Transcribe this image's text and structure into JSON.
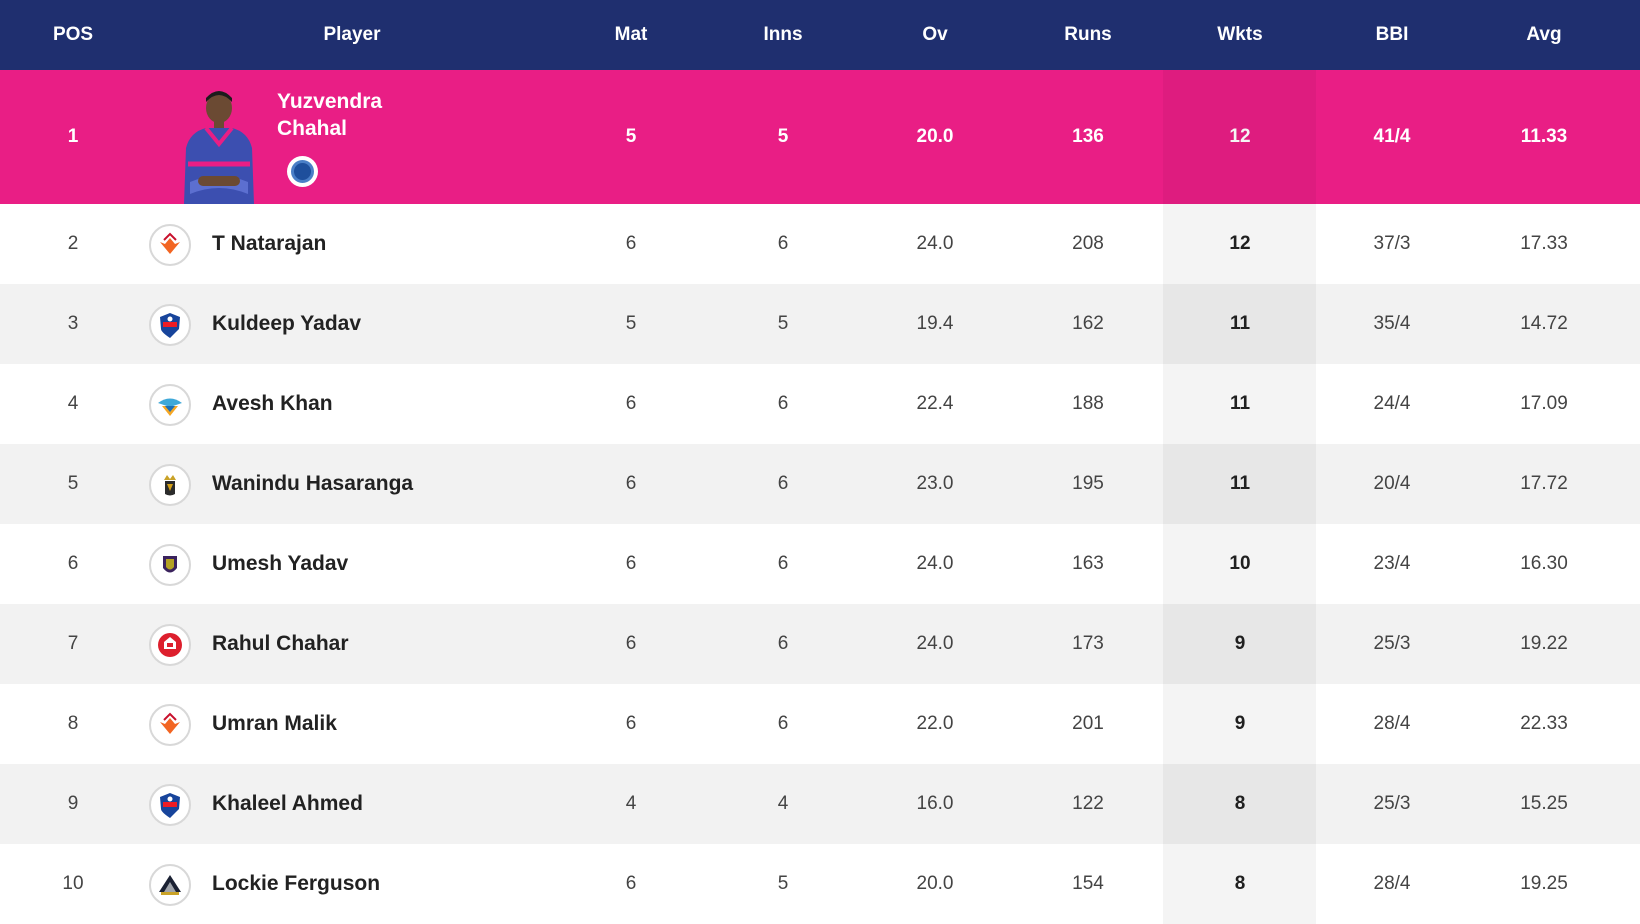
{
  "header": {
    "pos": "POS",
    "player": "Player",
    "mat": "Mat",
    "inns": "Inns",
    "ov": "Ov",
    "runs": "Runs",
    "wkts": "Wkts",
    "bbi": "BBI",
    "avg": "Avg"
  },
  "featured": {
    "pos": "1",
    "name": "Yuzvendra Chahal",
    "mat": "5",
    "inns": "5",
    "ov": "20.0",
    "runs": "136",
    "wkts": "12",
    "bbi": "41/4",
    "avg": "11.33",
    "team_icon": "rajasthan-royals-badge"
  },
  "rows": [
    {
      "pos": "2",
      "name": "T Natarajan",
      "mat": "6",
      "inns": "6",
      "ov": "24.0",
      "runs": "208",
      "wkts": "12",
      "bbi": "37/3",
      "avg": "17.33",
      "team_icon": "sunrisers-hyderabad-logo"
    },
    {
      "pos": "3",
      "name": "Kuldeep Yadav",
      "mat": "5",
      "inns": "5",
      "ov": "19.4",
      "runs": "162",
      "wkts": "11",
      "bbi": "35/4",
      "avg": "14.72",
      "team_icon": "delhi-capitals-logo"
    },
    {
      "pos": "4",
      "name": "Avesh Khan",
      "mat": "6",
      "inns": "6",
      "ov": "22.4",
      "runs": "188",
      "wkts": "11",
      "bbi": "24/4",
      "avg": "17.09",
      "team_icon": "lucknow-super-giants-logo"
    },
    {
      "pos": "5",
      "name": "Wanindu Hasaranga",
      "mat": "6",
      "inns": "6",
      "ov": "23.0",
      "runs": "195",
      "wkts": "11",
      "bbi": "20/4",
      "avg": "17.72",
      "team_icon": "royal-challengers-bangalore-logo"
    },
    {
      "pos": "6",
      "name": "Umesh Yadav",
      "mat": "6",
      "inns": "6",
      "ov": "24.0",
      "runs": "163",
      "wkts": "10",
      "bbi": "23/4",
      "avg": "16.30",
      "team_icon": "kolkata-knight-riders-logo"
    },
    {
      "pos": "7",
      "name": "Rahul Chahar",
      "mat": "6",
      "inns": "6",
      "ov": "24.0",
      "runs": "173",
      "wkts": "9",
      "bbi": "25/3",
      "avg": "19.22",
      "team_icon": "punjab-kings-logo"
    },
    {
      "pos": "8",
      "name": "Umran Malik",
      "mat": "6",
      "inns": "6",
      "ov": "22.0",
      "runs": "201",
      "wkts": "9",
      "bbi": "28/4",
      "avg": "22.33",
      "team_icon": "sunrisers-hyderabad-logo"
    },
    {
      "pos": "9",
      "name": "Khaleel Ahmed",
      "mat": "4",
      "inns": "4",
      "ov": "16.0",
      "runs": "122",
      "wkts": "8",
      "bbi": "25/3",
      "avg": "15.25",
      "team_icon": "delhi-capitals-logo"
    },
    {
      "pos": "10",
      "name": "Lockie Ferguson",
      "mat": "6",
      "inns": "5",
      "ov": "20.0",
      "runs": "154",
      "wkts": "8",
      "bbi": "28/4",
      "avg": "19.25",
      "team_icon": "gujarat-titans-logo"
    }
  ],
  "colors": {
    "header_bg": "#1f2f6f",
    "featured_bg": "#e91e85",
    "row_alt_bg": "#f2f2f2"
  }
}
